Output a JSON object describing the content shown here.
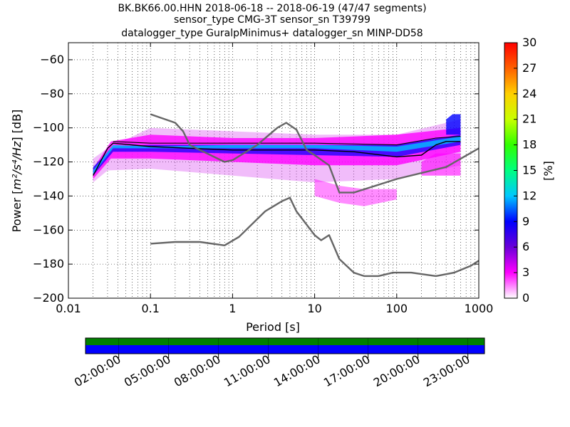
{
  "title_lines": [
    "BK.BK66.00.HHN   2018-06-18 -- 2018-06-19  (47/47 segments)",
    "sensor_type CMG-3T sensor_sn T39799",
    "datalogger_type GuralpMinimus+ datalogger_sn MINP-DD58"
  ],
  "chart_data": {
    "type": "heatmap",
    "xlabel": "Period [s]",
    "ylabel_prefix": "Power [",
    "ylabel_units": "m²/s⁴/Hz",
    "ylabel_suffix": "] [dB]",
    "xscale": "log",
    "xlim": [
      0.01,
      1000
    ],
    "ylim": [
      -200,
      -50
    ],
    "x_ticks": [
      {
        "value": 0.01,
        "label": "0.01"
      },
      {
        "value": 0.1,
        "label": "0.1"
      },
      {
        "value": 1,
        "label": "1"
      },
      {
        "value": 10,
        "label": "10"
      },
      {
        "value": 100,
        "label": "100"
      },
      {
        "value": 1000,
        "label": "1000"
      }
    ],
    "y_ticks": [
      {
        "value": -60,
        "label": "−60"
      },
      {
        "value": -80,
        "label": "−80"
      },
      {
        "value": -100,
        "label": "−100"
      },
      {
        "value": -120,
        "label": "−120"
      },
      {
        "value": -140,
        "label": "−140"
      },
      {
        "value": -160,
        "label": "−160"
      },
      {
        "value": -180,
        "label": "−180"
      },
      {
        "value": -200,
        "label": "−200"
      }
    ],
    "grid": "dotted",
    "colorbar": {
      "label": "[%]",
      "range": [
        0,
        30
      ],
      "ticks": [
        "0",
        "3",
        "6",
        "9",
        "12",
        "15",
        "18",
        "21",
        "24",
        "27",
        "30"
      ],
      "colors": [
        "#ffffff",
        "#ff00ff",
        "#6a00d8",
        "#0000ff",
        "#00c8ff",
        "#00ff80",
        "#30ff00",
        "#c8ff00",
        "#ffd000",
        "#ff6000",
        "#ff0000"
      ]
    },
    "bands": [
      {
        "x": [
          0.02,
          0.03,
          0.1,
          1,
          10,
          100,
          600
        ],
        "y_top": [
          -118,
          -112,
          -100,
          -102,
          -104,
          -104,
          -95
        ],
        "y_bot": [
          -132,
          -125,
          -124,
          -128,
          -132,
          -130,
          -122
        ],
        "color": "#d840f0",
        "opacity": 0.35
      },
      {
        "x": [
          0.02,
          0.033,
          0.1,
          1,
          10,
          100,
          600
        ],
        "y_top": [
          -124,
          -108,
          -104,
          -106,
          -106,
          -104,
          -100
        ],
        "y_bot": [
          -130,
          -118,
          -118,
          -120,
          -122,
          -122,
          -114
        ],
        "color": "#ff00ff",
        "opacity": 0.8
      },
      {
        "x": [
          0.02,
          0.035,
          0.1,
          1,
          10,
          100,
          600
        ],
        "y_top": [
          -123,
          -111,
          -110,
          -110,
          -110,
          -110,
          -104
        ],
        "y_bot": [
          -128,
          -114,
          -114,
          -115,
          -116,
          -117,
          -110
        ],
        "color": "#0000ff",
        "opacity": 0.7
      },
      {
        "x": [
          0.02,
          0.035,
          0.1,
          1,
          10,
          100,
          600
        ],
        "y_top": [
          -125,
          -110,
          -111,
          -110,
          -110,
          -111,
          -105
        ],
        "y_bot": [
          -127,
          -112,
          -112,
          -112,
          -112,
          -114,
          -108
        ],
        "color": "#00c0ff",
        "opacity": 0.8
      },
      {
        "x": [
          10,
          20,
          40,
          100
        ],
        "y_top": [
          -130,
          -134,
          -136,
          -136
        ],
        "y_bot": [
          -140,
          -144,
          -146,
          -142
        ],
        "color": "#ff00ff",
        "opacity": 0.45
      },
      {
        "x": [
          200,
          300,
          600
        ],
        "y_top": [
          -120,
          -115,
          -115
        ],
        "y_bot": [
          -128,
          -128,
          -128
        ],
        "color": "#ff00ff",
        "opacity": 0.6
      },
      {
        "x": [
          400,
          480,
          600
        ],
        "y_top": [
          -95,
          -92,
          -92
        ],
        "y_bot": [
          -104,
          -104,
          -104
        ],
        "color": "#0000ff",
        "opacity": 0.8
      }
    ],
    "lines": [
      {
        "name": "",
        "color": "#000000",
        "width": 1.4,
        "points": [
          [
            0.02,
            -128
          ],
          [
            0.03,
            -112
          ],
          [
            0.035,
            -109
          ],
          [
            0.1,
            -111
          ],
          [
            1,
            -113
          ],
          [
            10,
            -113
          ],
          [
            30,
            -114
          ],
          [
            100,
            -117
          ],
          [
            200,
            -116
          ],
          [
            300,
            -110
          ],
          [
            400,
            -108
          ],
          [
            600,
            -108
          ]
        ]
      },
      {
        "name": "",
        "color": "#000000",
        "width": 1.1,
        "points": [
          [
            0.035,
            -108
          ],
          [
            0.1,
            -109
          ],
          [
            1,
            -109
          ],
          [
            10,
            -109
          ],
          [
            100,
            -110
          ],
          [
            300,
            -106
          ],
          [
            600,
            -105
          ]
        ]
      },
      {
        "name": "",
        "color": "#666666",
        "width": 2.4,
        "points": [
          [
            0.1,
            -92
          ],
          [
            0.2,
            -97
          ],
          [
            0.25,
            -102
          ],
          [
            0.3,
            -110
          ],
          [
            0.4,
            -113
          ],
          [
            0.8,
            -120
          ],
          [
            1,
            -119
          ],
          [
            2,
            -110
          ],
          [
            3.5,
            -100
          ],
          [
            4.5,
            -97
          ],
          [
            6,
            -101
          ],
          [
            8,
            -113
          ],
          [
            10,
            -116
          ],
          [
            15,
            -122
          ],
          [
            20,
            -138
          ],
          [
            30,
            -138
          ],
          [
            100,
            -130
          ],
          [
            400,
            -123
          ],
          [
            1000,
            -112
          ]
        ]
      },
      {
        "name": "",
        "color": "#666666",
        "width": 2.4,
        "points": [
          [
            0.1,
            -168
          ],
          [
            0.2,
            -167
          ],
          [
            0.4,
            -167
          ],
          [
            0.8,
            -169
          ],
          [
            1.2,
            -164
          ],
          [
            2.5,
            -149
          ],
          [
            4,
            -143
          ],
          [
            5,
            -141
          ],
          [
            6,
            -149
          ],
          [
            10,
            -163
          ],
          [
            12,
            -166
          ],
          [
            15,
            -163
          ],
          [
            20,
            -177
          ],
          [
            30,
            -185
          ],
          [
            40,
            -187
          ],
          [
            60,
            -187
          ],
          [
            90,
            -185
          ],
          [
            150,
            -185
          ],
          [
            300,
            -187
          ],
          [
            500,
            -185
          ],
          [
            800,
            -181
          ],
          [
            1000,
            -178
          ]
        ]
      }
    ]
  },
  "time_bar": {
    "tick_labels": [
      "02:00:00",
      "05:00:00",
      "08:00:00",
      "11:00:00",
      "14:00:00",
      "17:00:00",
      "20:00:00",
      "23:00:00"
    ],
    "top_color": "#008000",
    "bottom_color": "#0000ff"
  }
}
